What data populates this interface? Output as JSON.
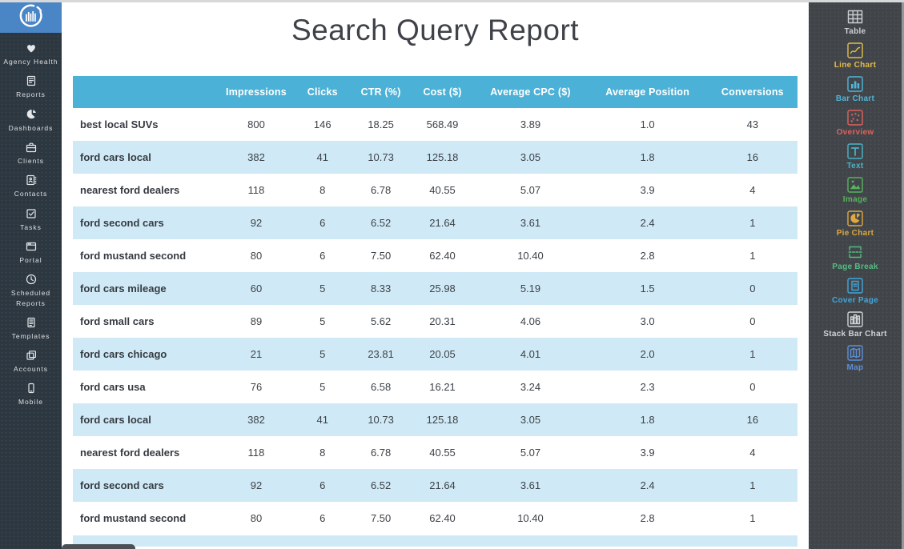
{
  "report": {
    "title": "Search Query Report"
  },
  "left_sidebar": {
    "items": [
      {
        "label": "Agency Health",
        "icon": "heart-icon"
      },
      {
        "label": "Reports",
        "icon": "report-icon"
      },
      {
        "label": "Dashboards",
        "icon": "pie-gauge-icon"
      },
      {
        "label": "Clients",
        "icon": "briefcase-icon"
      },
      {
        "label": "Contacts",
        "icon": "contact-book-icon"
      },
      {
        "label": "Tasks",
        "icon": "checkbox-icon"
      },
      {
        "label": "Portal",
        "icon": "browser-window-icon"
      },
      {
        "label": "Scheduled Reports",
        "icon": "clock-icon"
      },
      {
        "label": "Templates",
        "icon": "document-icon"
      },
      {
        "label": "Accounts",
        "icon": "stacked-cards-icon"
      },
      {
        "label": "Mobile",
        "icon": "mobile-phone-icon"
      }
    ]
  },
  "table": {
    "columns": [
      "",
      "Impressions",
      "Clicks",
      "CTR (%)",
      "Cost ($)",
      "Average CPC ($)",
      "Average Position",
      "Conversions"
    ],
    "rows": [
      [
        "best local SUVs",
        "800",
        "146",
        "18.25",
        "568.49",
        "3.89",
        "1.0",
        "43"
      ],
      [
        "ford cars local",
        "382",
        "41",
        "10.73",
        "125.18",
        "3.05",
        "1.8",
        "16"
      ],
      [
        "nearest ford dealers",
        "118",
        "8",
        "6.78",
        "40.55",
        "5.07",
        "3.9",
        "4"
      ],
      [
        "ford second cars",
        "92",
        "6",
        "6.52",
        "21.64",
        "3.61",
        "2.4",
        "1"
      ],
      [
        "ford mustand second",
        "80",
        "6",
        "7.50",
        "62.40",
        "10.40",
        "2.8",
        "1"
      ],
      [
        "ford cars mileage",
        "60",
        "5",
        "8.33",
        "25.98",
        "5.19",
        "1.5",
        "0"
      ],
      [
        "ford small cars",
        "89",
        "5",
        "5.62",
        "20.31",
        "4.06",
        "3.0",
        "0"
      ],
      [
        "ford cars chicago",
        "21",
        "5",
        "23.81",
        "20.05",
        "4.01",
        "2.0",
        "1"
      ],
      [
        "ford cars usa",
        "76",
        "5",
        "6.58",
        "16.21",
        "3.24",
        "2.3",
        "0"
      ],
      [
        "ford cars local",
        "382",
        "41",
        "10.73",
        "125.18",
        "3.05",
        "1.8",
        "16"
      ],
      [
        "nearest ford dealers",
        "118",
        "8",
        "6.78",
        "40.55",
        "5.07",
        "3.9",
        "4"
      ],
      [
        "ford second cars",
        "92",
        "6",
        "6.52",
        "21.64",
        "3.61",
        "2.4",
        "1"
      ],
      [
        "ford mustand second",
        "80",
        "6",
        "7.50",
        "62.40",
        "10.40",
        "2.8",
        "1"
      ]
    ]
  },
  "right_sidebar": {
    "widgets": [
      {
        "label": "Table",
        "icon": "widget-table-icon",
        "color": "#cdd0d2"
      },
      {
        "label": "Line Chart",
        "icon": "widget-line-chart-icon",
        "color": "#e3bd4a"
      },
      {
        "label": "Bar Chart",
        "icon": "widget-bar-chart-icon",
        "color": "#4db7dc"
      },
      {
        "label": "Overview",
        "icon": "widget-overview-icon",
        "color": "#e2605c"
      },
      {
        "label": "Text",
        "icon": "widget-text-icon",
        "color": "#49b4c9"
      },
      {
        "label": "Image",
        "icon": "widget-image-icon",
        "color": "#55b45b"
      },
      {
        "label": "Pie Chart",
        "icon": "widget-pie-chart-icon",
        "color": "#e0a93f"
      },
      {
        "label": "Page Break",
        "icon": "widget-page-break-icon",
        "color": "#54bd80"
      },
      {
        "label": "Cover Page",
        "icon": "widget-cover-page-icon",
        "color": "#41a6dc"
      },
      {
        "label": "Stack Bar Chart",
        "icon": "widget-stack-bar-icon",
        "color": "#d0d3d5"
      },
      {
        "label": "Map",
        "icon": "widget-map-icon",
        "color": "#5d8ed8"
      }
    ]
  },
  "colors": {
    "table_header_blue": "#4bb1d7",
    "row_alt_blue": "#cfeaf6",
    "logo_blue": "#4a85c5",
    "left_sidebar_bg": "#2d3740",
    "right_sidebar_bg": "#414549"
  }
}
